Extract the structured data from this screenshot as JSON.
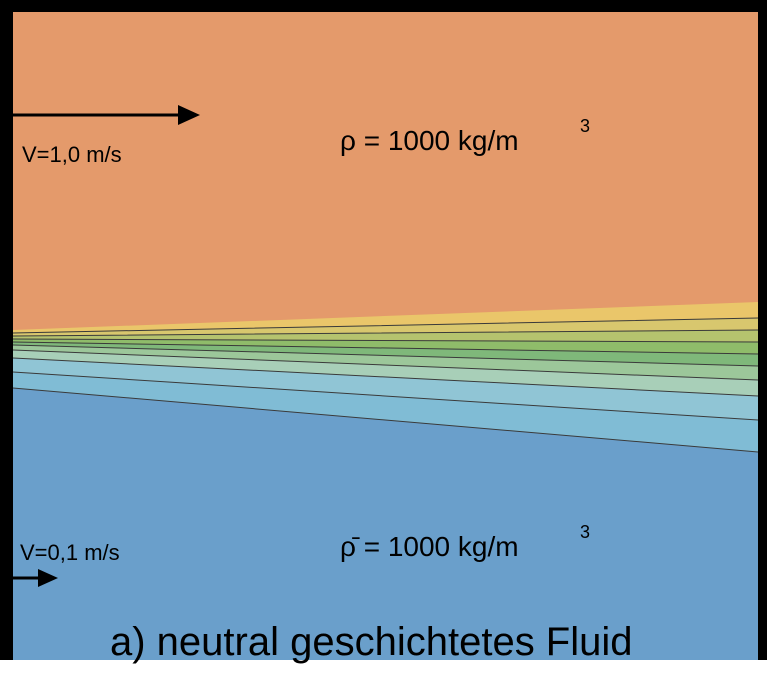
{
  "upper_flow": {
    "velocity": "V=1,0 m/s",
    "density": "ρ = 1000 kg/m",
    "density_exponent": "3"
  },
  "lower_flow": {
    "velocity": "V=0,1 m/s",
    "density": "ρ̄ = 1000 kg/m",
    "density_exponent": "3"
  },
  "caption": "a) neutral geschichtetes Fluid"
}
